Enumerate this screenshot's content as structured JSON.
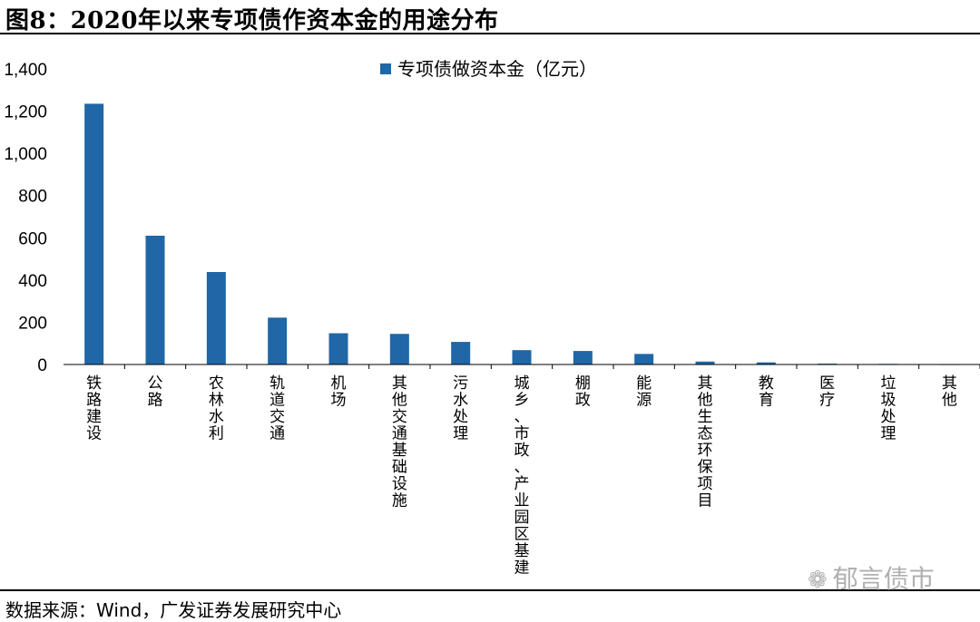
{
  "title": "图8：2020年以来专项债作资本金的用途分布",
  "source": "数据来源：Wind，广发证券发展研究中心",
  "watermark": "郁言债市",
  "chart_data": {
    "type": "bar",
    "title": "",
    "legend": "专项债做资本金（亿元）",
    "legend_position": "top-center",
    "color": "#1f67a6",
    "xlabel": "",
    "ylabel": "",
    "ylim": [
      0,
      1400
    ],
    "yticks": [
      0,
      200,
      400,
      600,
      800,
      1000,
      1200,
      1400
    ],
    "ytick_labels": [
      "0",
      "200",
      "400",
      "600",
      "800",
      "1,000",
      "1,200",
      "1,400"
    ],
    "categories": [
      "铁路建设",
      "公路",
      "农林水利",
      "轨道交通",
      "机场",
      "其他交通基础设施",
      "污水处理",
      "城乡、市政、产业园区基建",
      "棚政",
      "能源",
      "其他生态环保项目",
      "教育",
      "医疗",
      "垃圾处理",
      "其他"
    ],
    "values": [
      1235,
      610,
      438,
      222,
      148,
      145,
      107,
      68,
      64,
      50,
      14,
      10,
      4,
      3,
      1
    ]
  }
}
